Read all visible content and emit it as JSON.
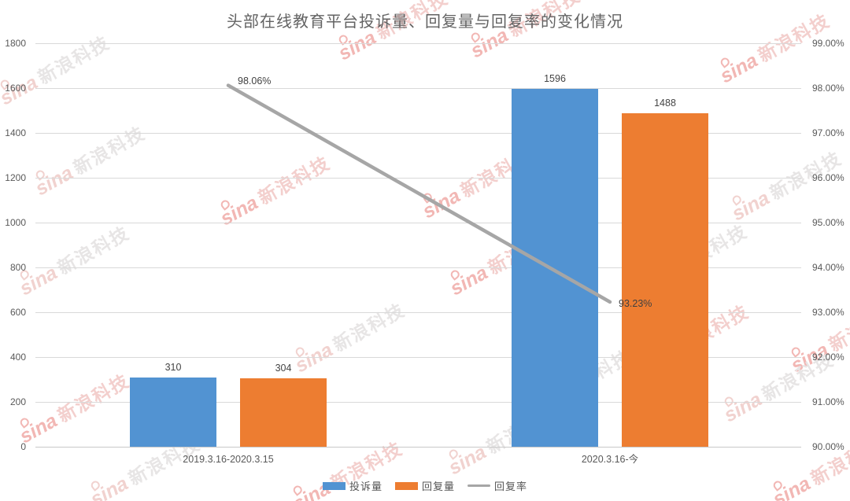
{
  "chart_data": {
    "type": "bar",
    "title": "头部在线教育平台投诉量、回复量与回复率的变化情况",
    "categories": [
      "2019.3.16-2020.3.15",
      "2020.3.16-今"
    ],
    "series": [
      {
        "name": "投诉量",
        "kind": "bar",
        "color": "#5293D2",
        "axis": "left",
        "values": [
          310,
          1596
        ],
        "value_labels": [
          "310",
          "1596"
        ]
      },
      {
        "name": "回复量",
        "kind": "bar",
        "color": "#ED7D31",
        "axis": "left",
        "values": [
          304,
          1488
        ],
        "value_labels": [
          "304",
          "1488"
        ]
      },
      {
        "name": "回复率",
        "kind": "line",
        "color": "#A6A6A6",
        "axis": "right",
        "values": [
          98.06,
          93.23
        ],
        "value_labels": [
          "98.06%",
          "93.23%"
        ]
      }
    ],
    "left_axis": {
      "min": 0,
      "max": 1800,
      "step": 200,
      "ticks": [
        "1800",
        "1600",
        "1400",
        "1200",
        "1000",
        "800",
        "600",
        "400",
        "200",
        "0"
      ]
    },
    "right_axis": {
      "min": 90,
      "max": 99,
      "step": 1,
      "ticks": [
        "99.00%",
        "98.00%",
        "97.00%",
        "96.00%",
        "95.00%",
        "94.00%",
        "93.00%",
        "92.00%",
        "91.00%",
        "90.00%"
      ]
    },
    "legend": {
      "position": "bottom",
      "items": [
        "投诉量",
        "回复量",
        "回复率"
      ]
    },
    "grid": true
  },
  "watermark": {
    "brand": "sina",
    "text": "新浪科技"
  },
  "colors": {
    "bar_blue": "#5293D2",
    "bar_orange": "#ED7D31",
    "line_gray": "#A6A6A6",
    "gridline": "#D9D9D9",
    "tick_text": "#595959"
  }
}
